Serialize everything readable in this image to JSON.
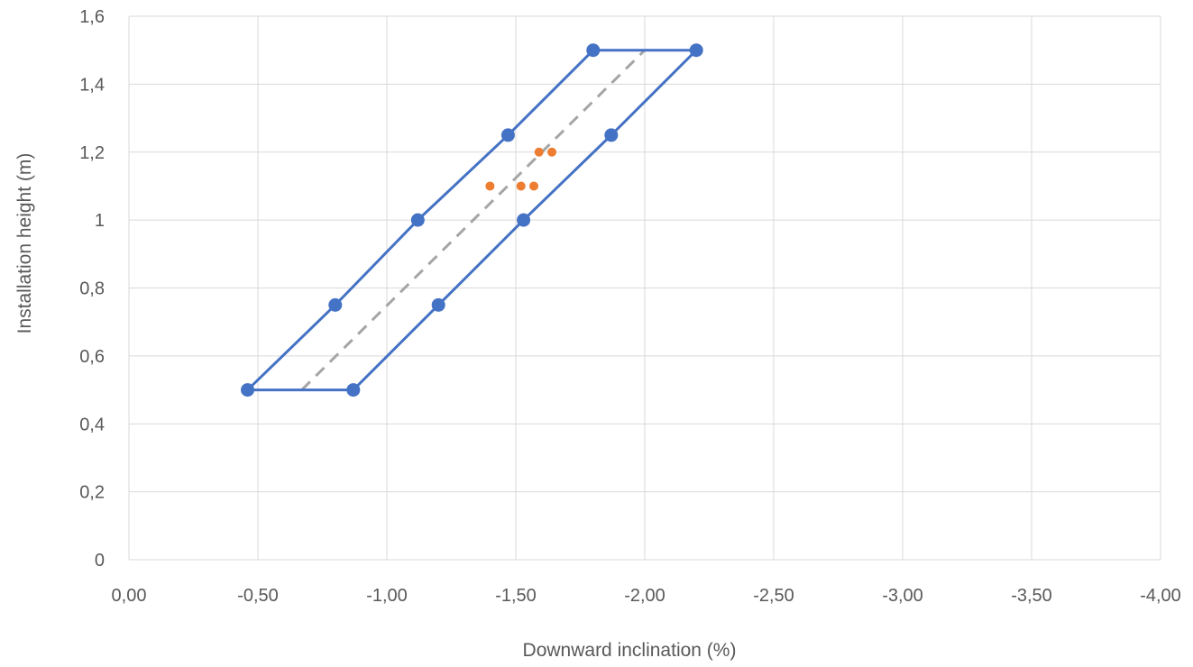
{
  "chart_data": {
    "type": "scatter",
    "title": "",
    "xlabel": "Downward inclination (%)",
    "ylabel": "Installation height (m)",
    "xlim": [
      0,
      -4
    ],
    "ylim": [
      0,
      1.6
    ],
    "x_reversed": true,
    "x_ticks": [
      0,
      -0.5,
      -1,
      -1.5,
      -2,
      -2.5,
      -3,
      -3.5,
      -4
    ],
    "x_tick_labels": [
      "0,00",
      "-0,50",
      "-1,00",
      "-1,50",
      "-2,00",
      "-2,50",
      "-3,00",
      "-3,50",
      "-4,00"
    ],
    "y_ticks": [
      0,
      0.2,
      0.4,
      0.6,
      0.8,
      1.0,
      1.2,
      1.4,
      1.6
    ],
    "y_tick_labels": [
      "0",
      "0,2",
      "0,4",
      "0,6",
      "0,8",
      "1",
      "1,2",
      "1,4",
      "1,6"
    ],
    "grid": true,
    "legend": "none",
    "colors": {
      "boundary": "#4472C4",
      "centerline": "#A5A5A5",
      "measured": "#ED7D31",
      "grid": "#D9D9D9"
    },
    "series": [
      {
        "style": "line-markers",
        "color": "#4472C4",
        "points": [
          {
            "x": -0.46,
            "y": 0.5
          },
          {
            "x": -0.8,
            "y": 0.75
          },
          {
            "x": -1.12,
            "y": 1.0
          },
          {
            "x": -1.47,
            "y": 1.25
          },
          {
            "x": -1.8,
            "y": 1.5
          },
          {
            "x": -2.2,
            "y": 1.5
          },
          {
            "x": -1.87,
            "y": 1.25
          },
          {
            "x": -1.53,
            "y": 1.0
          },
          {
            "x": -1.2,
            "y": 0.75
          },
          {
            "x": -0.87,
            "y": 0.5
          },
          {
            "x": -0.46,
            "y": 0.5
          }
        ]
      },
      {
        "style": "dashed-line",
        "color": "#A5A5A5",
        "points": [
          {
            "x": -0.67,
            "y": 0.5
          },
          {
            "x": -2.0,
            "y": 1.5
          }
        ]
      },
      {
        "style": "markers",
        "color": "#ED7D31",
        "points": [
          {
            "x": -1.4,
            "y": 1.1
          },
          {
            "x": -1.52,
            "y": 1.1
          },
          {
            "x": -1.57,
            "y": 1.1
          },
          {
            "x": -1.59,
            "y": 1.2
          },
          {
            "x": -1.64,
            "y": 1.2
          }
        ]
      }
    ]
  }
}
